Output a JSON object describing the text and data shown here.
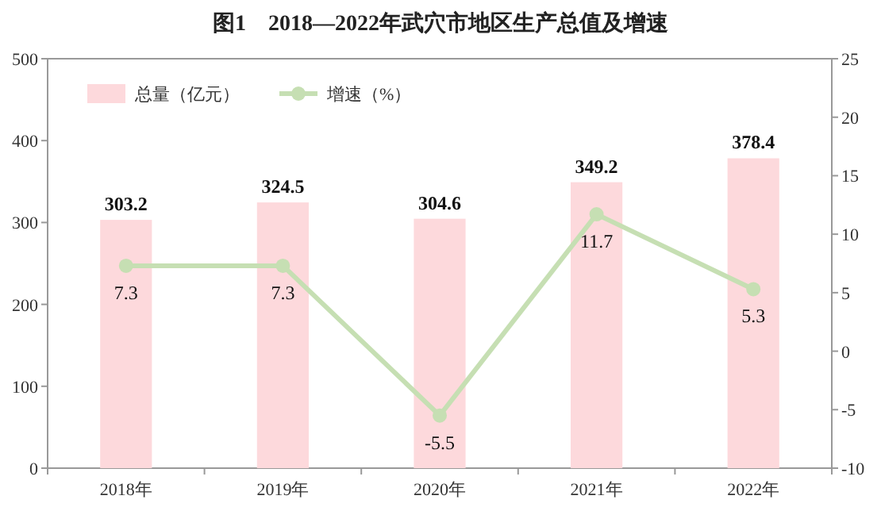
{
  "chart_data": {
    "type": "bar",
    "title": "图1　2018—2022年武穴市地区生产总值及增速",
    "categories": [
      "2018年",
      "2019年",
      "2020年",
      "2021年",
      "2022年"
    ],
    "series": [
      {
        "name": "总量（亿元）",
        "color": "#fdd9dc",
        "values": [
          303.2,
          324.5,
          304.6,
          349.2,
          378.4
        ]
      },
      {
        "name": "增速（%）",
        "type": "line",
        "axis": "y2",
        "color": "#c6dfb3",
        "values": [
          7.3,
          7.3,
          -5.5,
          11.7,
          5.3
        ]
      }
    ],
    "ylim": [
      0,
      500
    ],
    "yticks": [
      0,
      100,
      200,
      300,
      400,
      500
    ],
    "y2lim": [
      -10,
      25
    ],
    "y2ticks": [
      -10,
      -5,
      0,
      5,
      10,
      15,
      20,
      25
    ],
    "marker": "circle",
    "line_style": "solid",
    "data_labels": true,
    "legend": "top left",
    "grid": false
  }
}
